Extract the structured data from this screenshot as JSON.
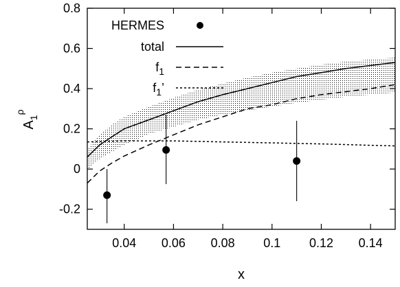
{
  "chart_data": {
    "type": "line",
    "xlabel": "x",
    "ylabel": "A",
    "ylabel_sub": "1",
    "ylabel_sup": "ρ",
    "xlim": [
      0.025,
      0.15
    ],
    "ylim": [
      -0.3,
      0.8
    ],
    "xticks": [
      0.04,
      0.06,
      0.08,
      0.1,
      0.12,
      0.14
    ],
    "xtick_labels": [
      "0.04",
      "0.06",
      "0.08",
      "0.1",
      "0.12",
      "0.14"
    ],
    "yticks": [
      -0.2,
      0,
      0.2,
      0.4,
      0.6,
      0.8
    ],
    "ytick_labels": [
      "-0.2",
      "0",
      "0.2",
      "0.4",
      "0.6",
      "0.8"
    ],
    "grid": false,
    "legend_placement": "top-left",
    "legend": [
      {
        "label": "HERMES",
        "style": "points"
      },
      {
        "label": "total",
        "style": "solid"
      },
      {
        "label": "f",
        "sub": "1",
        "style": "dashed"
      },
      {
        "label": "f",
        "sub": "1",
        "suffix": "’",
        "style": "dotted"
      }
    ],
    "series": [
      {
        "name": "HERMES",
        "type": "points",
        "x": [
          0.033,
          0.057,
          0.11
        ],
        "y": [
          -0.13,
          0.095,
          0.04
        ],
        "err_low": [
          -0.27,
          -0.075,
          -0.16
        ],
        "err_high": [
          0.0,
          0.27,
          0.24
        ]
      },
      {
        "name": "total",
        "style": "solid",
        "x": [
          0.025,
          0.03,
          0.035,
          0.04,
          0.05,
          0.06,
          0.07,
          0.08,
          0.09,
          0.1,
          0.11,
          0.12,
          0.13,
          0.14,
          0.15
        ],
        "y": [
          0.06,
          0.12,
          0.16,
          0.2,
          0.245,
          0.29,
          0.335,
          0.37,
          0.4,
          0.43,
          0.46,
          0.48,
          0.5,
          0.515,
          0.53
        ]
      },
      {
        "name": "f1",
        "style": "dashed",
        "x": [
          0.025,
          0.03,
          0.035,
          0.04,
          0.05,
          0.06,
          0.07,
          0.08,
          0.09,
          0.1,
          0.11,
          0.12,
          0.13,
          0.14,
          0.15
        ],
        "y": [
          -0.07,
          -0.01,
          0.03,
          0.065,
          0.12,
          0.17,
          0.22,
          0.26,
          0.3,
          0.32,
          0.35,
          0.37,
          0.385,
          0.4,
          0.42
        ]
      },
      {
        "name": "f1'",
        "style": "dotted",
        "x": [
          0.025,
          0.04,
          0.06,
          0.08,
          0.1,
          0.12,
          0.14,
          0.15
        ],
        "y": [
          0.135,
          0.14,
          0.14,
          0.135,
          0.13,
          0.125,
          0.118,
          0.115
        ]
      }
    ],
    "band": {
      "fill": "stippled",
      "x": [
        0.025,
        0.03,
        0.035,
        0.04,
        0.05,
        0.06,
        0.07,
        0.08,
        0.09,
        0.1,
        0.11,
        0.12,
        0.13,
        0.14,
        0.15
      ],
      "lower": [
        0.0,
        0.05,
        0.085,
        0.12,
        0.175,
        0.21,
        0.245,
        0.27,
        0.29,
        0.31,
        0.33,
        0.345,
        0.36,
        0.37,
        0.38
      ],
      "upper": [
        0.1,
        0.17,
        0.22,
        0.26,
        0.31,
        0.355,
        0.395,
        0.425,
        0.455,
        0.48,
        0.5,
        0.52,
        0.535,
        0.545,
        0.555
      ]
    }
  }
}
